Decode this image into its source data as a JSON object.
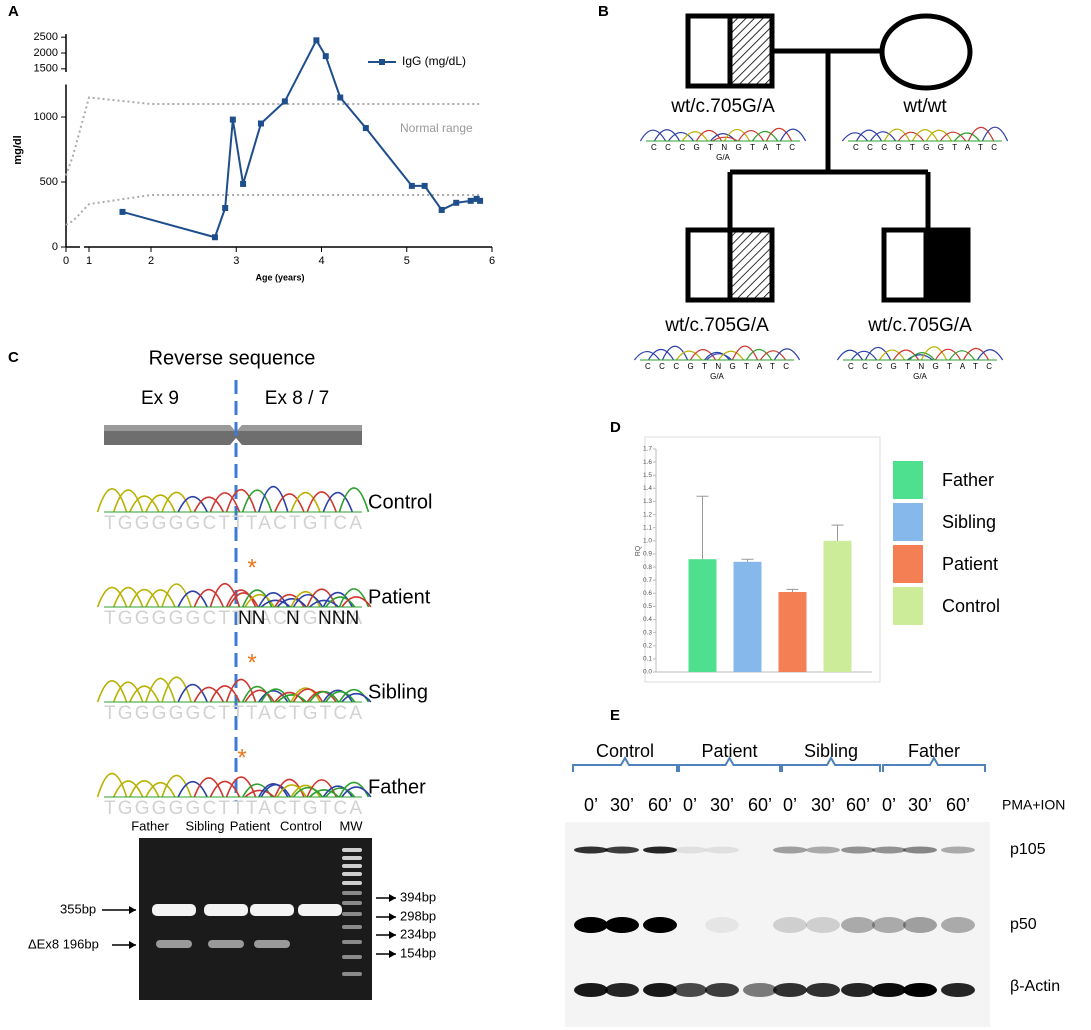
{
  "panel_labels": [
    "A",
    "B",
    "C",
    "D",
    "E"
  ],
  "chart_data": [
    {
      "type": "line",
      "x": [
        1.54,
        2.75,
        2.87,
        2.96,
        3.08,
        3.29,
        3.57,
        3.94,
        4.05,
        4.22,
        4.52,
        5.06,
        5.21,
        5.41,
        5.58,
        5.75,
        5.82,
        5.86
      ],
      "series": [
        {
          "name": "IgG (mg/dL)",
          "color": "#1f4e8c",
          "values": [
            270,
            75,
            300,
            980,
            485,
            950,
            1120,
            2400,
            1900,
            1150,
            915,
            470,
            470,
            285,
            340,
            355,
            370,
            355
          ]
        }
      ],
      "xlabel": "Age (years)",
      "ylabel": "mg/dl",
      "xlim": [
        0,
        6
      ],
      "xticks": [
        0,
        1,
        2,
        3,
        4,
        5,
        6
      ],
      "ylim": [
        0,
        2600
      ],
      "yticks": [
        0,
        500,
        1000,
        1500,
        2000,
        2500
      ],
      "y_break": [
        1250,
        1400
      ],
      "annotation": {
        "text": "Normal range",
        "upper": {
          "x": [
            0,
            0.3,
            1,
            2,
            5.85
          ],
          "values": [
            550,
            700,
            1150,
            1100,
            1100
          ]
        },
        "lower": {
          "x": [
            0,
            0.3,
            1,
            2,
            5.85
          ],
          "values": [
            170,
            200,
            330,
            400,
            400
          ]
        }
      }
    },
    {
      "type": "bar",
      "ylabel": "RQ",
      "categories": [
        "Father",
        "Sibling",
        "Patient",
        "Control"
      ],
      "colors": [
        "#4fe08f",
        "#86b8ec",
        "#f47f55",
        "#cdec9a"
      ],
      "values": [
        0.86,
        0.84,
        0.61,
        1.0
      ],
      "errors": [
        0.48,
        0.02,
        0.02,
        0.12
      ],
      "ylim": [
        0,
        1.7
      ],
      "yticks": [
        {
          "value": 0,
          "label": "0.0"
        },
        0.1,
        0.2,
        0.3,
        0.4,
        0.5,
        0.6,
        0.7,
        0.8,
        0.9,
        {
          "value": 1,
          "label": "1.0"
        },
        1.1,
        1.2,
        1.3,
        1.4,
        1.5,
        1.6,
        1.7
      ]
    }
  ],
  "pedigree": {
    "individuals": [
      {
        "genotype": "wt/c.705G/A",
        "trace": "CCCGTNGTATC",
        "call": "G/A"
      },
      {
        "genotype": "wt/wt",
        "trace": "CCCGTGGTATC"
      },
      {
        "genotype": "wt/c.705G/A",
        "trace": "CCCGTNGTATC",
        "call": "G/A"
      },
      {
        "genotype": "wt/c.705G/A",
        "trace": "CCCGTNGTATC",
        "call": "G/A"
      }
    ]
  },
  "sequencing": {
    "title": "Reverse sequence",
    "exons": [
      "Ex 9",
      "Ex 8 / 7"
    ],
    "samples": [
      {
        "name": "Control",
        "sequence": "TGGGGGCTTTACTGTCA"
      },
      {
        "name": "Patient",
        "sequence": "TGGGGGCTTTACTGTCA",
        "calls": [
          "NN",
          "N",
          "NNN"
        ],
        "mark": "*"
      },
      {
        "name": "Sibling",
        "sequence": "TGGGGGCTTTACTGTCA",
        "mark": "*"
      },
      {
        "name": "Father",
        "sequence": "TGGGGGCTTTACTGTCA",
        "mark": "*"
      }
    ]
  },
  "gel": {
    "lanes": [
      "Father",
      "Sibling",
      "Patient",
      "Control",
      "MW"
    ],
    "left_markers": [
      "355bp",
      "ΔEx8 196bp"
    ],
    "right_markers": [
      "394bp",
      "298bp",
      "234bp",
      "154bp"
    ]
  },
  "western": {
    "groups": [
      "Control",
      "Patient",
      "Sibling",
      "Father"
    ],
    "times": [
      "0’",
      "30’",
      "60’"
    ],
    "treatment": "PMA+ION",
    "proteins": [
      "p105",
      "p50",
      "β-Actin"
    ]
  }
}
